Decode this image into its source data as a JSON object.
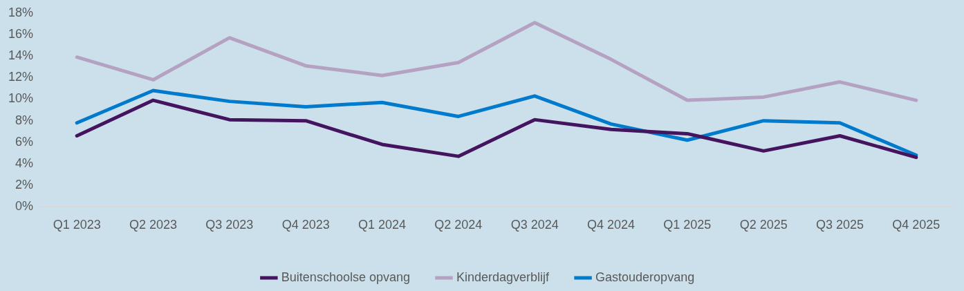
{
  "chart_data": {
    "type": "line",
    "categories": [
      "Q1 2023",
      "Q2 2023",
      "Q3 2023",
      "Q4 2023",
      "Q1 2024",
      "Q2 2024",
      "Q3 2024",
      "Q4 2024",
      "Q1 2025",
      "Q2 2025",
      "Q3 2025",
      "Q4 2025"
    ],
    "series": [
      {
        "name": "Buitenschoolse opvang",
        "color": "#44145e",
        "values": [
          6.6,
          9.9,
          8.1,
          8.0,
          5.8,
          4.7,
          8.1,
          7.2,
          6.8,
          5.2,
          6.6,
          4.6
        ]
      },
      {
        "name": "Kinderdagverblijf",
        "color": "#b5a1c2",
        "values": [
          13.9,
          11.8,
          15.7,
          13.1,
          12.2,
          13.4,
          17.1,
          13.7,
          9.9,
          10.2,
          11.6,
          9.9
        ]
      },
      {
        "name": "Gastouderopvang",
        "color": "#007acc",
        "values": [
          7.8,
          10.8,
          9.8,
          9.3,
          9.7,
          8.4,
          10.3,
          7.7,
          6.2,
          8.0,
          7.8,
          4.8
        ]
      }
    ],
    "ylim": [
      0,
      18
    ],
    "yticks": [
      {
        "value": 0,
        "label": "0%"
      },
      {
        "value": 2,
        "label": "2%"
      },
      {
        "value": 4,
        "label": "4%"
      },
      {
        "value": 6,
        "label": "6%"
      },
      {
        "value": 8,
        "label": "8%"
      },
      {
        "value": 10,
        "label": "10%"
      },
      {
        "value": 12,
        "label": "12%"
      },
      {
        "value": 14,
        "label": "14%"
      },
      {
        "value": 16,
        "label": "16%"
      },
      {
        "value": 18,
        "label": "18%"
      }
    ],
    "grid": false,
    "legend": "bottom",
    "marker": "none",
    "line_style": "solid"
  }
}
